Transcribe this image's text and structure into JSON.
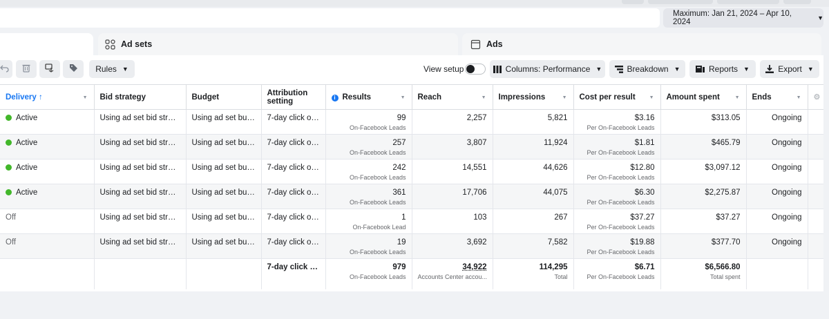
{
  "date_range": {
    "label": "Maximum: Jan 21, 2024 – Apr 10, 2024"
  },
  "tabs": {
    "ad_sets": "Ad sets",
    "ads": "Ads"
  },
  "toolbar": {
    "rules": "Rules",
    "view_setup": "View setup",
    "columns": "Columns: Performance",
    "breakdown": "Breakdown",
    "reports": "Reports",
    "export": "Export"
  },
  "columns": {
    "delivery": "Delivery",
    "bid_strategy": "Bid strategy",
    "budget": "Budget",
    "attribution": "Attribution setting",
    "results": "Results",
    "reach": "Reach",
    "impressions": "Impressions",
    "cost_per_result": "Cost per result",
    "amount_spent": "Amount spent",
    "ends": "Ends"
  },
  "rows": [
    {
      "delivery": "Active",
      "active": true,
      "bid": "Using ad set bid strate...",
      "budget": "Using ad set budg...",
      "attribution": "7-day click or 1...",
      "results": "99",
      "results_sub": "On-Facebook Leads",
      "reach": "2,257",
      "impressions": "5,821",
      "cpr": "$3.16",
      "cpr_sub": "Per On-Facebook Leads",
      "spent": "$313.05",
      "ends": "Ongoing"
    },
    {
      "delivery": "Active",
      "active": true,
      "bid": "Using ad set bid strate...",
      "budget": "Using ad set budg...",
      "attribution": "7-day click or 1...",
      "results": "257",
      "results_sub": "On-Facebook Leads",
      "reach": "3,807",
      "impressions": "11,924",
      "cpr": "$1.81",
      "cpr_sub": "Per On-Facebook Leads",
      "spent": "$465.79",
      "ends": "Ongoing"
    },
    {
      "delivery": "Active",
      "active": true,
      "bid": "Using ad set bid strate...",
      "budget": "Using ad set budg...",
      "attribution": "7-day click or 1...",
      "results": "242",
      "results_sub": "On-Facebook Leads",
      "reach": "14,551",
      "impressions": "44,626",
      "cpr": "$12.80",
      "cpr_sub": "Per On-Facebook Leads",
      "spent": "$3,097.12",
      "ends": "Ongoing"
    },
    {
      "delivery": "Active",
      "active": true,
      "bid": "Using ad set bid strate...",
      "budget": "Using ad set budg...",
      "attribution": "7-day click or 1...",
      "results": "361",
      "results_sub": "On-Facebook Leads",
      "reach": "17,706",
      "impressions": "44,075",
      "cpr": "$6.30",
      "cpr_sub": "Per On-Facebook Leads",
      "spent": "$2,275.87",
      "ends": "Ongoing"
    },
    {
      "delivery": "Off",
      "active": false,
      "bid": "Using ad set bid strate...",
      "budget": "Using ad set budg...",
      "attribution": "7-day click or 1...",
      "results": "1",
      "results_sub": "On-Facebook Lead",
      "reach": "103",
      "impressions": "267",
      "cpr": "$37.27",
      "cpr_sub": "Per On-Facebook Leads",
      "spent": "$37.27",
      "ends": "Ongoing"
    },
    {
      "delivery": "Off",
      "active": false,
      "bid": "Using ad set bid strate...",
      "budget": "Using ad set budg...",
      "attribution": "7-day click or 1...",
      "results": "19",
      "results_sub": "On-Facebook Leads",
      "reach": "3,692",
      "impressions": "7,582",
      "cpr": "$19.88",
      "cpr_sub": "Per On-Facebook Leads",
      "spent": "$377.70",
      "ends": "Ongoing"
    }
  ],
  "totals": {
    "attribution": "7-day click or ...",
    "results": "979",
    "results_sub": "On-Facebook Leads",
    "reach": "34,922",
    "reach_sub": "Accounts Center accou...",
    "impressions": "114,295",
    "impressions_sub": "Total",
    "cpr": "$6.71",
    "cpr_sub": "Per On-Facebook Leads",
    "spent": "$6,566.80",
    "spent_sub": "Total spent"
  },
  "colors": {
    "active_dot": "#42b72a",
    "link_blue": "#1877f2",
    "info_blue": "#1877f2"
  },
  "icons": [
    "undo-icon",
    "trash-icon",
    "duplicate-icon",
    "tag-icon",
    "columns-icon",
    "breakdown-icon",
    "reports-icon",
    "export-icon",
    "info-icon",
    "gear-icon"
  ]
}
